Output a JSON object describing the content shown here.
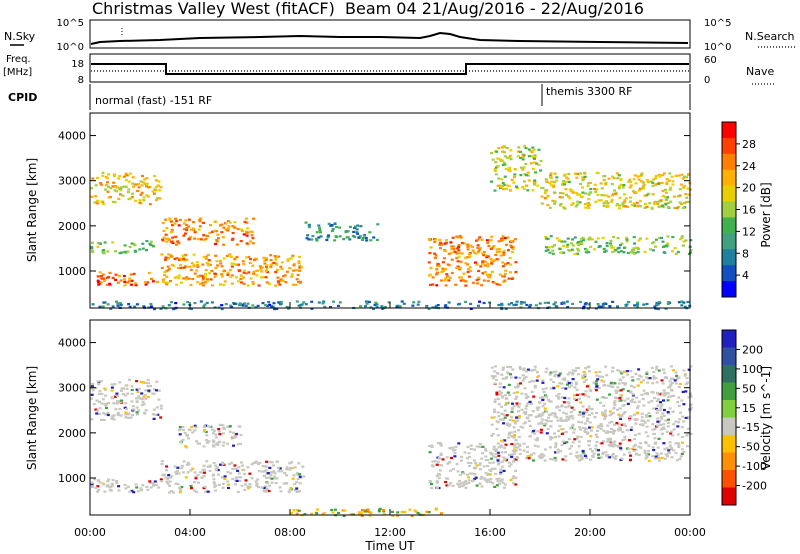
{
  "header": {
    "title": "Christmas Valley West (fitACF)",
    "beam_info": "Beam 04  21/Aug/2016 - 22/Aug/2016"
  },
  "noise_panel": {
    "left_label": "N.Sky",
    "right_label": "N.Search",
    "left_ticks": [
      "10^5",
      "10^0"
    ],
    "right_ticks": [
      "10^5",
      "10^0"
    ]
  },
  "freq_panel": {
    "left_label_1": "Freq.",
    "left_label_2": "[MHz]",
    "left_ticks": [
      "18",
      "8"
    ],
    "right_label": "Nave",
    "right_ticks": [
      "60",
      "0"
    ]
  },
  "cpid_panel": {
    "label": "CPID",
    "program_1": "normal (fast) -151 RF",
    "program_2": "themis 3300 RF"
  },
  "colorbars": {
    "power": {
      "label": "Power [dB]",
      "ticks": [
        "28",
        "24",
        "20",
        "16",
        "12",
        "8",
        "4"
      ],
      "colors": [
        "#ff0000",
        "#ff4000",
        "#ff8000",
        "#ffb000",
        "#e8d000",
        "#a0d040",
        "#40b050",
        "#40a080",
        "#2080a0",
        "#1050c0",
        "#0000ff"
      ]
    },
    "velocity": {
      "label": "Velocity [m s^-1]",
      "ticks": [
        "200",
        "100",
        "50",
        "15",
        "-15",
        "-50",
        "-100",
        "-200"
      ],
      "colors": [
        "#2020c0",
        "#3050a0",
        "#307060",
        "#40a040",
        "#80d040",
        "#c8c8c0",
        "#ffc000",
        "#ff9000",
        "#ff5000",
        "#e00000"
      ]
    }
  },
  "chart_data": [
    {
      "type": "heatmap",
      "title": "Power",
      "ylabel": "Slant Range [km]",
      "xlabel": "Time UT",
      "x_range": [
        0,
        24
      ],
      "y_range": [
        180,
        4500
      ],
      "y_ticks": [
        "4000",
        "3000",
        "2000",
        "1000"
      ],
      "x_ticks": [
        "00:00",
        "04:00",
        "08:00",
        "12:00",
        "16:00",
        "20:00",
        "00:00"
      ],
      "bands": [
        {
          "t": [
            0,
            2.8
          ],
          "r": [
            2500,
            3200
          ],
          "level": 22
        },
        {
          "t": [
            0,
            2.8
          ],
          "r": [
            700,
            1000
          ],
          "level": 28
        },
        {
          "t": [
            0,
            2.5
          ],
          "r": [
            1400,
            1700
          ],
          "level": 14
        },
        {
          "t": [
            2.8,
            6.5
          ],
          "r": [
            1600,
            2200
          ],
          "level": 26
        },
        {
          "t": [
            2.8,
            8.5
          ],
          "r": [
            700,
            1400
          ],
          "level": 24
        },
        {
          "t": [
            8.5,
            11.5
          ],
          "r": [
            1700,
            2100
          ],
          "level": 10
        },
        {
          "t": [
            13.5,
            17
          ],
          "r": [
            700,
            1800
          ],
          "level": 26
        },
        {
          "t": [
            16,
            18
          ],
          "r": [
            2800,
            3800
          ],
          "level": 18
        },
        {
          "t": [
            18,
            24
          ],
          "r": [
            1400,
            1800
          ],
          "level": 16
        },
        {
          "t": [
            18,
            24
          ],
          "r": [
            2400,
            3200
          ],
          "level": 20
        },
        {
          "t": [
            0,
            24
          ],
          "r": [
            180,
            350
          ],
          "level": 8
        }
      ]
    },
    {
      "type": "heatmap",
      "title": "Velocity",
      "ylabel": "Slant Range [km]",
      "xlabel": "Time UT",
      "x_range": [
        0,
        24
      ],
      "y_range": [
        180,
        4500
      ],
      "y_ticks": [
        "4000",
        "3000",
        "2000",
        "1000"
      ],
      "x_ticks": [
        "00:00",
        "04:00",
        "08:00",
        "12:00",
        "16:00",
        "20:00",
        "00:00"
      ],
      "bands": [
        {
          "t": [
            0,
            2.8
          ],
          "r": [
            2300,
            3200
          ],
          "level": 0
        },
        {
          "t": [
            0,
            2.8
          ],
          "r": [
            700,
            1000
          ],
          "level": 0
        },
        {
          "t": [
            2.8,
            8.5
          ],
          "r": [
            700,
            1400
          ],
          "level": 0
        },
        {
          "t": [
            3.5,
            6
          ],
          "r": [
            1700,
            2200
          ],
          "level": 0
        },
        {
          "t": [
            13.5,
            17
          ],
          "r": [
            800,
            1800
          ],
          "level": 0
        },
        {
          "t": [
            16,
            24
          ],
          "r": [
            1400,
            3500
          ],
          "level": 0
        },
        {
          "t": [
            8,
            14
          ],
          "r": [
            180,
            350
          ],
          "level": -40
        }
      ]
    }
  ]
}
